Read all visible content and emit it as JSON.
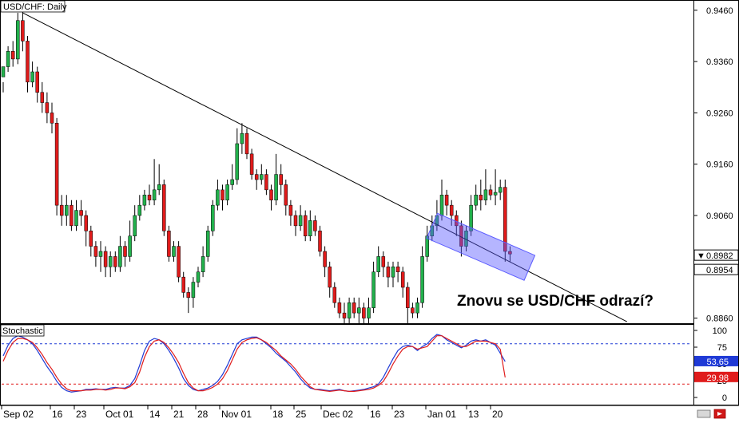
{
  "chart_data": [
    {
      "type": "candlestick",
      "title": "USD/CHF: Daily",
      "yticks": [
        "0.9460",
        "0.9360",
        "0.9260",
        "0.9160",
        "0.9060",
        "0.8860"
      ],
      "ylim": [
        0.885,
        0.948
      ],
      "price_labels": [
        {
          "text": "0.8982",
          "value": 0.8982,
          "marker": "▼",
          "style": "white"
        },
        {
          "text": "0.8954",
          "value": 0.8954,
          "style": "white"
        }
      ],
      "annotation": "Znovu se USD/CHF odrazí?",
      "trendline": {
        "start": {
          "bar": 4,
          "value": 0.9455
        },
        "end": {
          "bar": 128,
          "value": 0.8853
        }
      },
      "channel": {
        "start": {
          "bar": 88,
          "value": 0.904
        },
        "end": {
          "bar": 108,
          "value": 0.8958
        }
      },
      "colors": {
        "up": "#22b14c",
        "down": "#e01b1b",
        "channel": "#5b5bff"
      },
      "candles": [
        [
          0.933,
          0.935,
          0.932,
          0.93
        ],
        [
          0.935,
          0.938,
          0.939,
          0.934
        ],
        [
          0.938,
          0.9365,
          0.94,
          0.935
        ],
        [
          0.9365,
          0.944,
          0.9455,
          0.9355
        ],
        [
          0.944,
          0.94,
          0.946,
          0.938
        ],
        [
          0.94,
          0.932,
          0.941,
          0.93
        ],
        [
          0.932,
          0.934,
          0.936,
          0.931
        ],
        [
          0.934,
          0.93,
          0.935,
          0.928
        ],
        [
          0.93,
          0.928,
          0.932,
          0.926
        ],
        [
          0.928,
          0.926,
          0.93,
          0.924
        ],
        [
          0.926,
          0.924,
          0.928,
          0.922
        ],
        [
          0.924,
          0.908,
          0.925,
          0.906
        ],
        [
          0.908,
          0.906,
          0.91,
          0.904
        ],
        [
          0.906,
          0.908,
          0.91,
          0.904
        ],
        [
          0.908,
          0.904,
          0.909,
          0.903
        ],
        [
          0.904,
          0.907,
          0.909,
          0.903
        ],
        [
          0.907,
          0.906,
          0.909,
          0.904
        ],
        [
          0.906,
          0.903,
          0.907,
          0.9
        ],
        [
          0.903,
          0.9,
          0.904,
          0.898
        ],
        [
          0.9,
          0.898,
          0.901,
          0.896
        ],
        [
          0.898,
          0.899,
          0.901,
          0.895
        ],
        [
          0.899,
          0.896,
          0.9,
          0.894
        ],
        [
          0.896,
          0.898,
          0.899,
          0.894
        ],
        [
          0.898,
          0.896,
          0.899,
          0.895
        ],
        [
          0.896,
          0.9,
          0.902,
          0.895
        ],
        [
          0.9,
          0.898,
          0.901,
          0.896
        ],
        [
          0.898,
          0.902,
          0.905,
          0.897
        ],
        [
          0.902,
          0.906,
          0.908,
          0.901
        ],
        [
          0.906,
          0.908,
          0.91,
          0.905
        ],
        [
          0.908,
          0.91,
          0.911,
          0.907
        ],
        [
          0.91,
          0.909,
          0.912,
          0.908
        ],
        [
          0.909,
          0.911,
          0.917,
          0.908
        ],
        [
          0.911,
          0.912,
          0.916,
          0.91
        ],
        [
          0.912,
          0.903,
          0.913,
          0.902
        ],
        [
          0.903,
          0.898,
          0.904,
          0.897
        ],
        [
          0.898,
          0.9,
          0.901,
          0.897
        ],
        [
          0.9,
          0.894,
          0.901,
          0.893
        ],
        [
          0.894,
          0.891,
          0.895,
          0.89
        ],
        [
          0.891,
          0.89,
          0.892,
          0.887
        ],
        [
          0.89,
          0.893,
          0.894,
          0.888
        ],
        [
          0.893,
          0.895,
          0.896,
          0.892
        ],
        [
          0.895,
          0.898,
          0.9,
          0.894
        ],
        [
          0.898,
          0.903,
          0.904,
          0.897
        ],
        [
          0.903,
          0.908,
          0.909,
          0.902
        ],
        [
          0.908,
          0.911,
          0.913,
          0.907
        ],
        [
          0.911,
          0.909,
          0.912,
          0.907
        ],
        [
          0.909,
          0.912,
          0.913,
          0.908
        ],
        [
          0.912,
          0.913,
          0.916,
          0.911
        ],
        [
          0.913,
          0.92,
          0.923,
          0.912
        ],
        [
          0.92,
          0.922,
          0.924,
          0.918
        ],
        [
          0.922,
          0.918,
          0.923,
          0.917
        ],
        [
          0.918,
          0.914,
          0.919,
          0.913
        ],
        [
          0.914,
          0.913,
          0.915,
          0.911
        ],
        [
          0.913,
          0.914,
          0.916,
          0.912
        ],
        [
          0.914,
          0.911,
          0.915,
          0.91
        ],
        [
          0.911,
          0.909,
          0.912,
          0.907
        ],
        [
          0.909,
          0.914,
          0.918,
          0.908
        ],
        [
          0.914,
          0.912,
          0.916,
          0.91
        ],
        [
          0.912,
          0.908,
          0.913,
          0.906
        ],
        [
          0.908,
          0.906,
          0.909,
          0.904
        ],
        [
          0.906,
          0.904,
          0.907,
          0.902
        ],
        [
          0.904,
          0.906,
          0.908,
          0.903
        ],
        [
          0.906,
          0.902,
          0.907,
          0.901
        ],
        [
          0.902,
          0.905,
          0.907,
          0.901
        ],
        [
          0.905,
          0.903,
          0.906,
          0.902
        ],
        [
          0.903,
          0.899,
          0.904,
          0.898
        ],
        [
          0.899,
          0.896,
          0.9,
          0.894
        ],
        [
          0.896,
          0.892,
          0.897,
          0.89
        ],
        [
          0.892,
          0.889,
          0.893,
          0.888
        ],
        [
          0.889,
          0.887,
          0.89,
          0.886
        ],
        [
          0.887,
          0.886,
          0.889,
          0.885
        ],
        [
          0.886,
          0.889,
          0.89,
          0.885
        ],
        [
          0.889,
          0.887,
          0.89,
          0.886
        ],
        [
          0.887,
          0.888,
          0.89,
          0.885
        ],
        [
          0.888,
          0.886,
          0.889,
          0.885
        ],
        [
          0.886,
          0.888,
          0.89,
          0.885
        ],
        [
          0.888,
          0.895,
          0.897,
          0.887
        ],
        [
          0.895,
          0.898,
          0.9,
          0.894
        ],
        [
          0.898,
          0.896,
          0.899,
          0.894
        ],
        [
          0.896,
          0.894,
          0.897,
          0.892
        ],
        [
          0.894,
          0.896,
          0.897,
          0.892
        ],
        [
          0.896,
          0.895,
          0.897,
          0.893
        ],
        [
          0.895,
          0.892,
          0.896,
          0.89
        ],
        [
          0.892,
          0.888,
          0.893,
          0.885
        ],
        [
          0.888,
          0.887,
          0.889,
          0.886
        ],
        [
          0.887,
          0.889,
          0.89,
          0.886
        ],
        [
          0.889,
          0.898,
          0.9,
          0.888
        ],
        [
          0.898,
          0.902,
          0.904,
          0.897
        ],
        [
          0.902,
          0.904,
          0.906,
          0.901
        ],
        [
          0.904,
          0.906,
          0.909,
          0.903
        ],
        [
          0.906,
          0.91,
          0.913,
          0.905
        ],
        [
          0.91,
          0.908,
          0.911,
          0.906
        ],
        [
          0.908,
          0.906,
          0.909,
          0.904
        ],
        [
          0.906,
          0.904,
          0.907,
          0.902
        ],
        [
          0.904,
          0.9,
          0.905,
          0.898
        ],
        [
          0.9,
          0.903,
          0.904,
          0.899
        ],
        [
          0.903,
          0.908,
          0.91,
          0.902
        ],
        [
          0.908,
          0.91,
          0.912,
          0.907
        ],
        [
          0.91,
          0.909,
          0.913,
          0.907
        ],
        [
          0.909,
          0.911,
          0.915,
          0.908
        ],
        [
          0.911,
          0.91,
          0.912,
          0.909
        ],
        [
          0.91,
          0.9105,
          0.915,
          0.908
        ],
        [
          0.9105,
          0.9115,
          0.913,
          0.909
        ],
        [
          0.9115,
          0.899,
          0.913,
          0.897
        ],
        [
          0.899,
          0.8985,
          0.9,
          0.897
        ]
      ]
    },
    {
      "type": "line",
      "title": "Stochastic",
      "yticks": [
        "100",
        "75",
        "50",
        "25",
        "0"
      ],
      "ylim": [
        0,
        100
      ],
      "levels": [
        80,
        20
      ],
      "value_labels": [
        {
          "text": "53.65",
          "value": 53.65,
          "color": "#1f3ad6"
        },
        {
          "text": "29.98",
          "value": 29.98,
          "color": "#e01b1b"
        }
      ],
      "series": [
        {
          "color": "#1f3ad6",
          "values": [
            62,
            78,
            88,
            92,
            90,
            86,
            80,
            70,
            58,
            46,
            36,
            24,
            15,
            10,
            8,
            9,
            10,
            12,
            12,
            13,
            12,
            12,
            14,
            15,
            14,
            14,
            18,
            28,
            48,
            70,
            84,
            88,
            86,
            80,
            70,
            58,
            44,
            28,
            18,
            12,
            10,
            12,
            14,
            18,
            24,
            34,
            48,
            64,
            80,
            86,
            88,
            90,
            90,
            86,
            80,
            74,
            66,
            60,
            54,
            46,
            38,
            28,
            20,
            14,
            12,
            12,
            11,
            10,
            11,
            12,
            10,
            9,
            10,
            11,
            12,
            14,
            16,
            20,
            30,
            44,
            58,
            70,
            76,
            78,
            76,
            70,
            76,
            80,
            88,
            94,
            92,
            86,
            82,
            78,
            74,
            78,
            84,
            86,
            84,
            86,
            82,
            78,
            66,
            53.65
          ]
        },
        {
          "color": "#e01b1b",
          "values": [
            54,
            70,
            82,
            88,
            88,
            86,
            82,
            74,
            64,
            52,
            42,
            30,
            20,
            13,
            10,
            10,
            10,
            11,
            11,
            12,
            12,
            11,
            12,
            14,
            14,
            13,
            16,
            22,
            38,
            60,
            76,
            84,
            86,
            82,
            74,
            64,
            52,
            36,
            22,
            14,
            10,
            10,
            12,
            15,
            20,
            28,
            40,
            56,
            72,
            82,
            86,
            88,
            89,
            86,
            82,
            76,
            70,
            62,
            56,
            50,
            42,
            32,
            24,
            16,
            12,
            11,
            10,
            9,
            10,
            11,
            10,
            9,
            9,
            10,
            11,
            12,
            14,
            18,
            24,
            36,
            50,
            62,
            72,
            76,
            76,
            72,
            74,
            76,
            84,
            92,
            92,
            88,
            84,
            80,
            76,
            76,
            80,
            84,
            84,
            84,
            82,
            80,
            72,
            29.98
          ]
        }
      ]
    }
  ],
  "x_labels": [
    "Sep 02",
    "16",
    "23",
    "Oct 01",
    "14",
    "21",
    "28",
    "Nov 01",
    "18",
    "25",
    "Dec 02",
    "16",
    "23",
    "Jan 01",
    "13",
    "20"
  ]
}
